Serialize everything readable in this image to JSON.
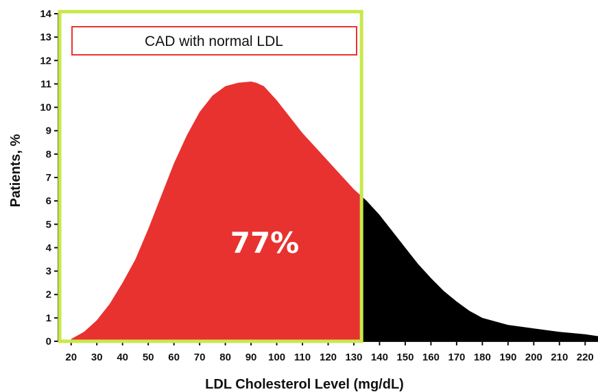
{
  "chart_data": {
    "type": "area",
    "title": "",
    "xlabel": "LDL Cholesterol Level (mg/dL)",
    "ylabel": "Patients, %",
    "xlim": [
      15,
      225
    ],
    "ylim": [
      0,
      14
    ],
    "x_ticks": [
      20,
      30,
      40,
      50,
      60,
      70,
      80,
      90,
      100,
      110,
      120,
      130,
      140,
      150,
      160,
      170,
      180,
      190,
      200,
      210,
      220
    ],
    "y_ticks": [
      0,
      1,
      2,
      3,
      4,
      5,
      6,
      7,
      8,
      9,
      10,
      11,
      12,
      13,
      14
    ],
    "grid": false,
    "series": [
      {
        "x": [
          20,
          25,
          30,
          35,
          40,
          45,
          50,
          55,
          60,
          65,
          70,
          75,
          80,
          85,
          90,
          92,
          95,
          100,
          105,
          110,
          115,
          120,
          125,
          130,
          135,
          140,
          145,
          150,
          155,
          160,
          165,
          170,
          175,
          180,
          185,
          190,
          200,
          210,
          220,
          225
        ],
        "y": [
          0.1,
          0.4,
          0.9,
          1.6,
          2.5,
          3.5,
          4.8,
          6.2,
          7.6,
          8.8,
          9.8,
          10.5,
          10.9,
          11.05,
          11.1,
          11.05,
          10.9,
          10.3,
          9.6,
          8.9,
          8.3,
          7.7,
          7.1,
          6.5,
          6.0,
          5.4,
          4.7,
          4.0,
          3.3,
          2.7,
          2.15,
          1.7,
          1.3,
          1.0,
          0.85,
          0.7,
          0.55,
          0.4,
          0.3,
          0.22
        ]
      }
    ],
    "highlight_range": [
      20,
      133
    ],
    "highlight_color": "#e8322f",
    "rest_color": "#000000",
    "box_color": "#c8e84a",
    "legend_border_color": "#e8322f",
    "legend_label": "CAD with normal LDL",
    "area_label": "77%",
    "legend_position": "top-left"
  }
}
